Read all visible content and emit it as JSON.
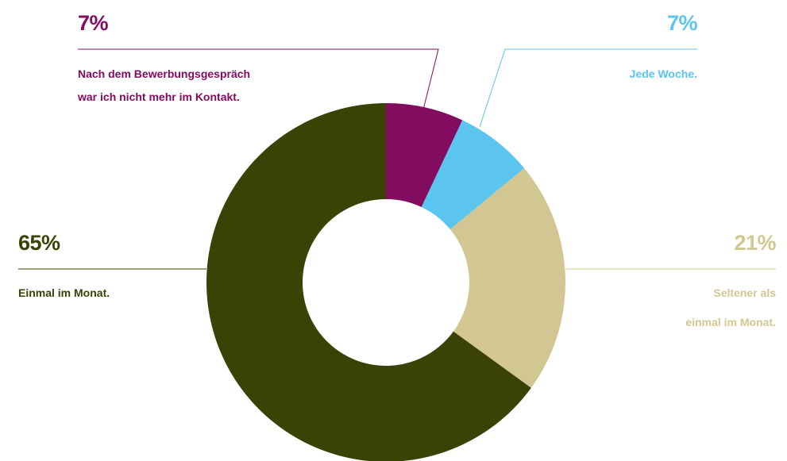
{
  "chart_data": {
    "type": "pie",
    "variant": "donut",
    "slices": [
      {
        "percent_label": "7%",
        "value": 7,
        "label_lines": [
          "Nach dem Bewerbungsgespräch",
          "war ich nicht mehr im Kontakt."
        ],
        "color": "#820c5f"
      },
      {
        "percent_label": "7%",
        "value": 7,
        "label_lines": [
          "Jede Woche."
        ],
        "color": "#5bc5f0"
      },
      {
        "percent_label": "21%",
        "value": 21,
        "label_lines": [
          "Seltener als",
          "einmal im Monat."
        ],
        "color": "#d2c793"
      },
      {
        "percent_label": "65%",
        "value": 65,
        "label_lines": [
          "Einmal im Monat."
        ],
        "color": "#3a4206"
      }
    ]
  }
}
